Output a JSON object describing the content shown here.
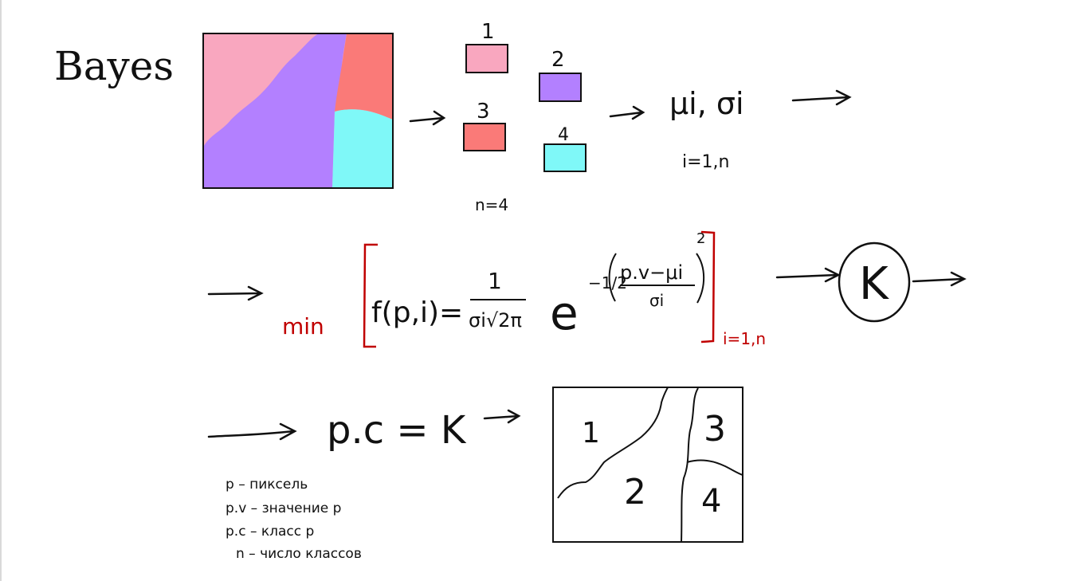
{
  "title": "Bayes",
  "colors": {
    "pink": "#f9a7bf",
    "purple": "#b380ff",
    "salmon": "#fa7a78",
    "cyan": "#7ff8f8",
    "ink": "#111111",
    "red_ink": "#c00000"
  },
  "classes": [
    {
      "label": "1",
      "color": "#f9a7bf"
    },
    {
      "label": "2",
      "color": "#b380ff"
    },
    {
      "label": "3",
      "color": "#fa7a78"
    },
    {
      "label": "4",
      "color": "#7ff8f8"
    }
  ],
  "n_label": "n=4",
  "params_label": "μi, σi",
  "index_range": "i=1,n",
  "formula": {
    "min_label": "min",
    "lhs": "f(p,i)=",
    "numerator": "1",
    "denominator": "σi√2π",
    "base": "e",
    "exponent_coef": "−1/2",
    "exponent_num": "p.v−μi",
    "exponent_den": "σi",
    "power": "2",
    "subscript_range": "i=1,n"
  },
  "result_symbol": "K",
  "assignment": "p.c = K",
  "result_regions": [
    "1",
    "2",
    "3",
    "4"
  ],
  "legend": [
    "p – пиксель",
    "p.v – значение p",
    "p.c – класс p",
    "n – число классов"
  ]
}
